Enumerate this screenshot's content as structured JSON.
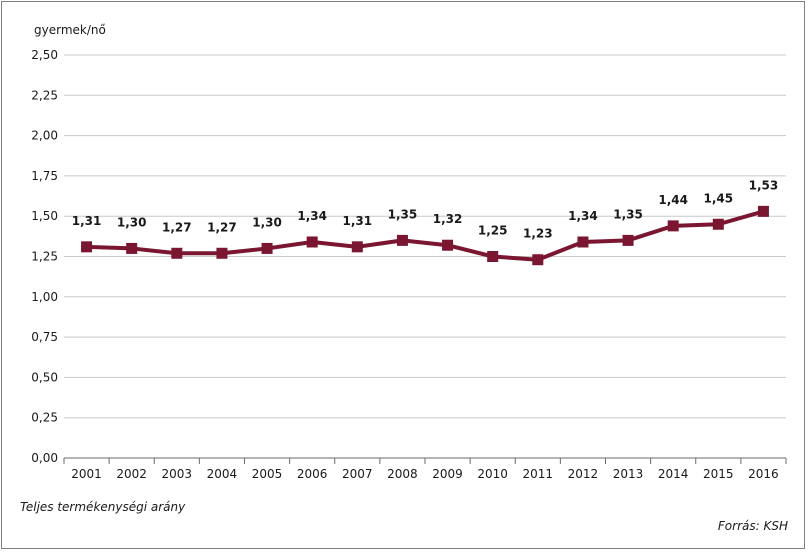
{
  "chart_data": {
    "type": "line",
    "ylabel": "gyermek/nő",
    "caption": "Teljes termékenységi arány",
    "source": "Forrás: KSH",
    "categories": [
      "2001",
      "2002",
      "2003",
      "2004",
      "2005",
      "2006",
      "2007",
      "2008",
      "2009",
      "2010",
      "2011",
      "2012",
      "2013",
      "2014",
      "2015",
      "2016"
    ],
    "series": [
      {
        "values": [
          1.31,
          1.3,
          1.27,
          1.27,
          1.3,
          1.34,
          1.31,
          1.35,
          1.32,
          1.25,
          1.23,
          1.34,
          1.35,
          1.44,
          1.45,
          1.53
        ],
        "labels": [
          "1,31",
          "1,30",
          "1,27",
          "1,27",
          "1,30",
          "1,34",
          "1,31",
          "1,35",
          "1,32",
          "1,25",
          "1,23",
          "1,34",
          "1,35",
          "1,44",
          "1,45",
          "1,53"
        ],
        "color": "#7b1631"
      }
    ],
    "ylim": [
      0,
      2.5
    ],
    "yticks": [
      0,
      0.25,
      0.5,
      0.75,
      1.0,
      1.25,
      1.5,
      1.75,
      2.0,
      2.25,
      2.5
    ],
    "ytick_labels": [
      "0,00",
      "0,25",
      "0,50",
      "0,75",
      "1,00",
      "1,25",
      "1,50",
      "1,75",
      "2,00",
      "2,25",
      "2,50"
    ],
    "grid": true,
    "gridline_color": "#c8c8c8"
  }
}
